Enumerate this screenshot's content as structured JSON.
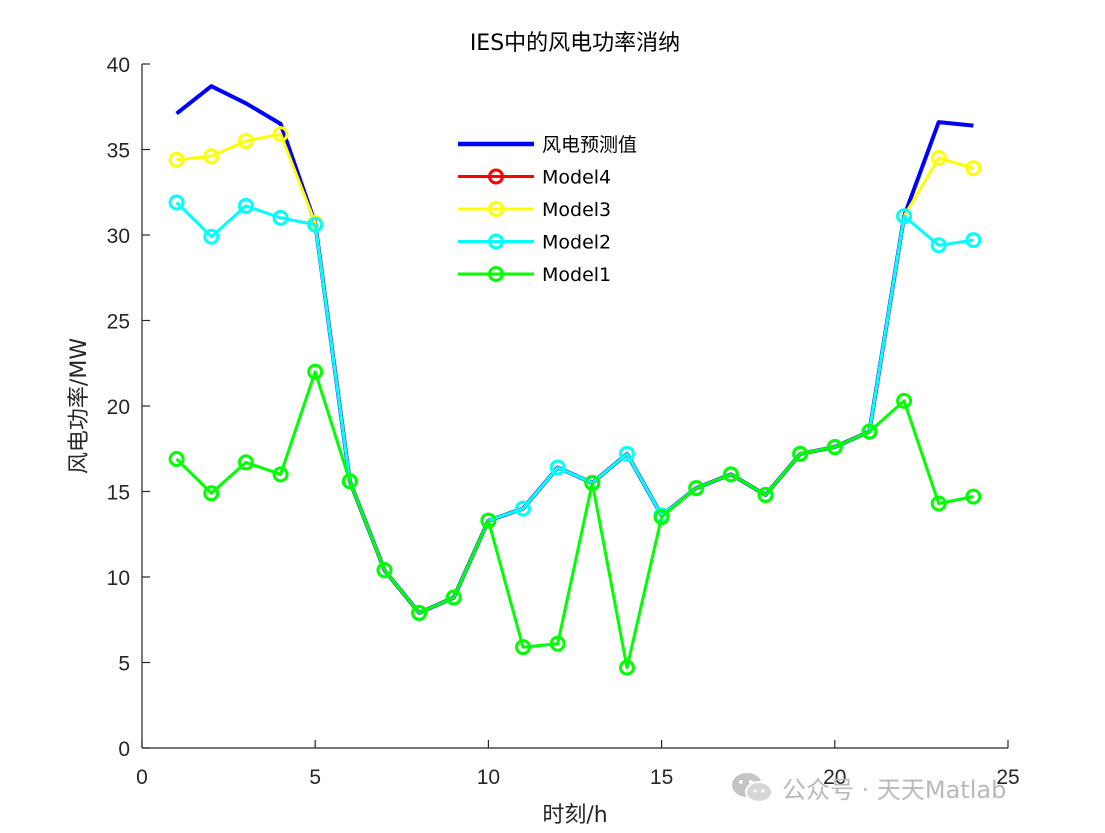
{
  "watermark": {
    "text": "公众号 · 天天Matlab",
    "icon": "wechat-icon"
  },
  "chart_data": {
    "type": "line",
    "title": "IES中的风电功率消纳",
    "xlabel": "时刻/h",
    "ylabel": "风电功率/MW",
    "xlim": [
      0,
      25
    ],
    "ylim": [
      0,
      40
    ],
    "xticks": [
      0,
      5,
      10,
      15,
      20,
      25
    ],
    "yticks": [
      0,
      5,
      10,
      15,
      20,
      25,
      30,
      35,
      40
    ],
    "grid": false,
    "legend_position": "top-center",
    "series": [
      {
        "name": "风电预测值",
        "color": "#0000ff",
        "marker": "none",
        "lineWidth": 4,
        "x": [
          1,
          2,
          3,
          4,
          5,
          6,
          7,
          8,
          9,
          10,
          11,
          12,
          13,
          14,
          15,
          16,
          17,
          18,
          19,
          20,
          21,
          22,
          23,
          24
        ],
        "y": [
          37.1,
          38.7,
          37.7,
          36.5,
          30.7,
          15.6,
          10.4,
          7.9,
          8.8,
          13.3,
          14.0,
          16.4,
          15.5,
          17.2,
          13.6,
          15.2,
          16.0,
          14.8,
          17.2,
          17.6,
          18.5,
          31.1,
          36.6,
          36.4
        ]
      },
      {
        "name": "Model4",
        "color": "#ff0000",
        "marker": "circle",
        "lineWidth": 3,
        "x": [],
        "y": []
      },
      {
        "name": "Model3",
        "color": "#ffff00",
        "marker": "circle",
        "lineWidth": 3,
        "x": [
          1,
          2,
          3,
          4,
          5,
          6,
          7,
          8,
          9,
          10,
          11,
          12,
          13,
          14,
          15,
          16,
          17,
          18,
          19,
          20,
          21,
          22,
          23,
          24
        ],
        "y": [
          34.4,
          34.6,
          35.5,
          35.9,
          30.7,
          15.6,
          10.4,
          7.9,
          8.8,
          13.3,
          14.0,
          16.4,
          15.5,
          17.2,
          13.6,
          15.2,
          16.0,
          14.8,
          17.2,
          17.6,
          18.5,
          31.1,
          34.5,
          33.9
        ]
      },
      {
        "name": "Model2",
        "color": "#00ffff",
        "marker": "circle",
        "lineWidth": 3,
        "x": [
          1,
          2,
          3,
          4,
          5,
          6,
          7,
          8,
          9,
          10,
          11,
          12,
          13,
          14,
          15,
          16,
          17,
          18,
          19,
          20,
          21,
          22,
          23,
          24
        ],
        "y": [
          31.9,
          29.9,
          31.7,
          31.0,
          30.6,
          15.6,
          10.4,
          7.9,
          8.8,
          13.3,
          14.0,
          16.4,
          15.5,
          17.2,
          13.6,
          15.2,
          16.0,
          14.8,
          17.2,
          17.6,
          18.5,
          31.1,
          29.4,
          29.7
        ]
      },
      {
        "name": "Model1",
        "color": "#00ff00",
        "marker": "circle",
        "lineWidth": 3,
        "x": [
          1,
          2,
          3,
          4,
          5,
          6,
          7,
          8,
          9,
          10,
          11,
          12,
          13,
          14,
          15,
          16,
          17,
          18,
          19,
          20,
          21,
          22,
          23,
          24
        ],
        "y": [
          16.9,
          14.9,
          16.7,
          16.0,
          22.0,
          15.6,
          10.4,
          7.9,
          8.8,
          13.3,
          5.9,
          6.1,
          15.5,
          4.7,
          13.5,
          15.2,
          16.0,
          14.8,
          17.2,
          17.6,
          18.5,
          20.3,
          14.3,
          14.7
        ]
      }
    ]
  }
}
